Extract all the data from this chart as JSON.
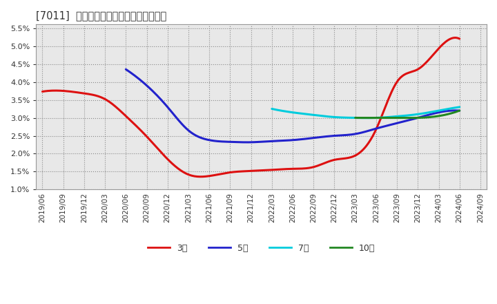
{
  "title": "[7011]  経常利益マージンの平均値の推移",
  "background_color": "#ffffff",
  "plot_bg_color": "#e8e8e8",
  "ylim": [
    0.01,
    0.056
  ],
  "yticks": [
    0.01,
    0.015,
    0.02,
    0.025,
    0.03,
    0.035,
    0.04,
    0.045,
    0.05,
    0.055
  ],
  "x_labels": [
    "2019/06",
    "2019/09",
    "2019/12",
    "2020/03",
    "2020/06",
    "2020/09",
    "2020/12",
    "2021/03",
    "2021/06",
    "2021/09",
    "2021/12",
    "2022/03",
    "2022/06",
    "2022/09",
    "2022/12",
    "2023/03",
    "2023/06",
    "2023/09",
    "2023/12",
    "2024/03",
    "2024/06",
    "2024/09"
  ],
  "series": [
    {
      "label": "3年",
      "color": "#dd1111",
      "linewidth": 2.2,
      "data_x": [
        0,
        1,
        2,
        3,
        4,
        5,
        6,
        7,
        8,
        9,
        10,
        11,
        12,
        13,
        14,
        15,
        16,
        17,
        18,
        19,
        20
      ],
      "data_y": [
        0.0373,
        0.0375,
        0.0368,
        0.0352,
        0.0305,
        0.0248,
        0.0185,
        0.0142,
        0.0138,
        0.0148,
        0.0152,
        0.0155,
        0.0158,
        0.0163,
        0.0183,
        0.0195,
        0.0268,
        0.04,
        0.0435,
        0.0493,
        0.052
      ]
    },
    {
      "label": "5年",
      "color": "#2222cc",
      "linewidth": 2.2,
      "data_x": [
        2,
        3,
        4,
        5,
        6,
        7,
        8,
        9,
        10,
        11,
        12,
        13,
        14,
        15,
        16,
        17,
        18,
        19,
        20
      ],
      "data_y": [
        null,
        null,
        0.0435,
        0.039,
        0.033,
        0.0265,
        0.0238,
        0.0233,
        0.0232,
        0.0235,
        0.0238,
        0.0244,
        0.025,
        0.0255,
        0.027,
        0.0285,
        0.03,
        0.0315,
        0.032
      ]
    },
    {
      "label": "7年",
      "color": "#00ccdd",
      "linewidth": 2.2,
      "data_x": [
        11,
        12,
        13,
        14,
        15,
        16,
        17,
        18,
        19,
        20
      ],
      "data_y": [
        0.0325,
        0.0315,
        0.0308,
        0.0302,
        0.03,
        0.03,
        0.0304,
        0.031,
        0.032,
        0.033
      ]
    },
    {
      "label": "10年",
      "color": "#228822",
      "linewidth": 2.2,
      "data_x": [
        15,
        16,
        17,
        18,
        19,
        20
      ],
      "data_y": [
        0.03,
        0.03,
        0.03,
        0.03,
        0.0305,
        0.032
      ]
    }
  ]
}
